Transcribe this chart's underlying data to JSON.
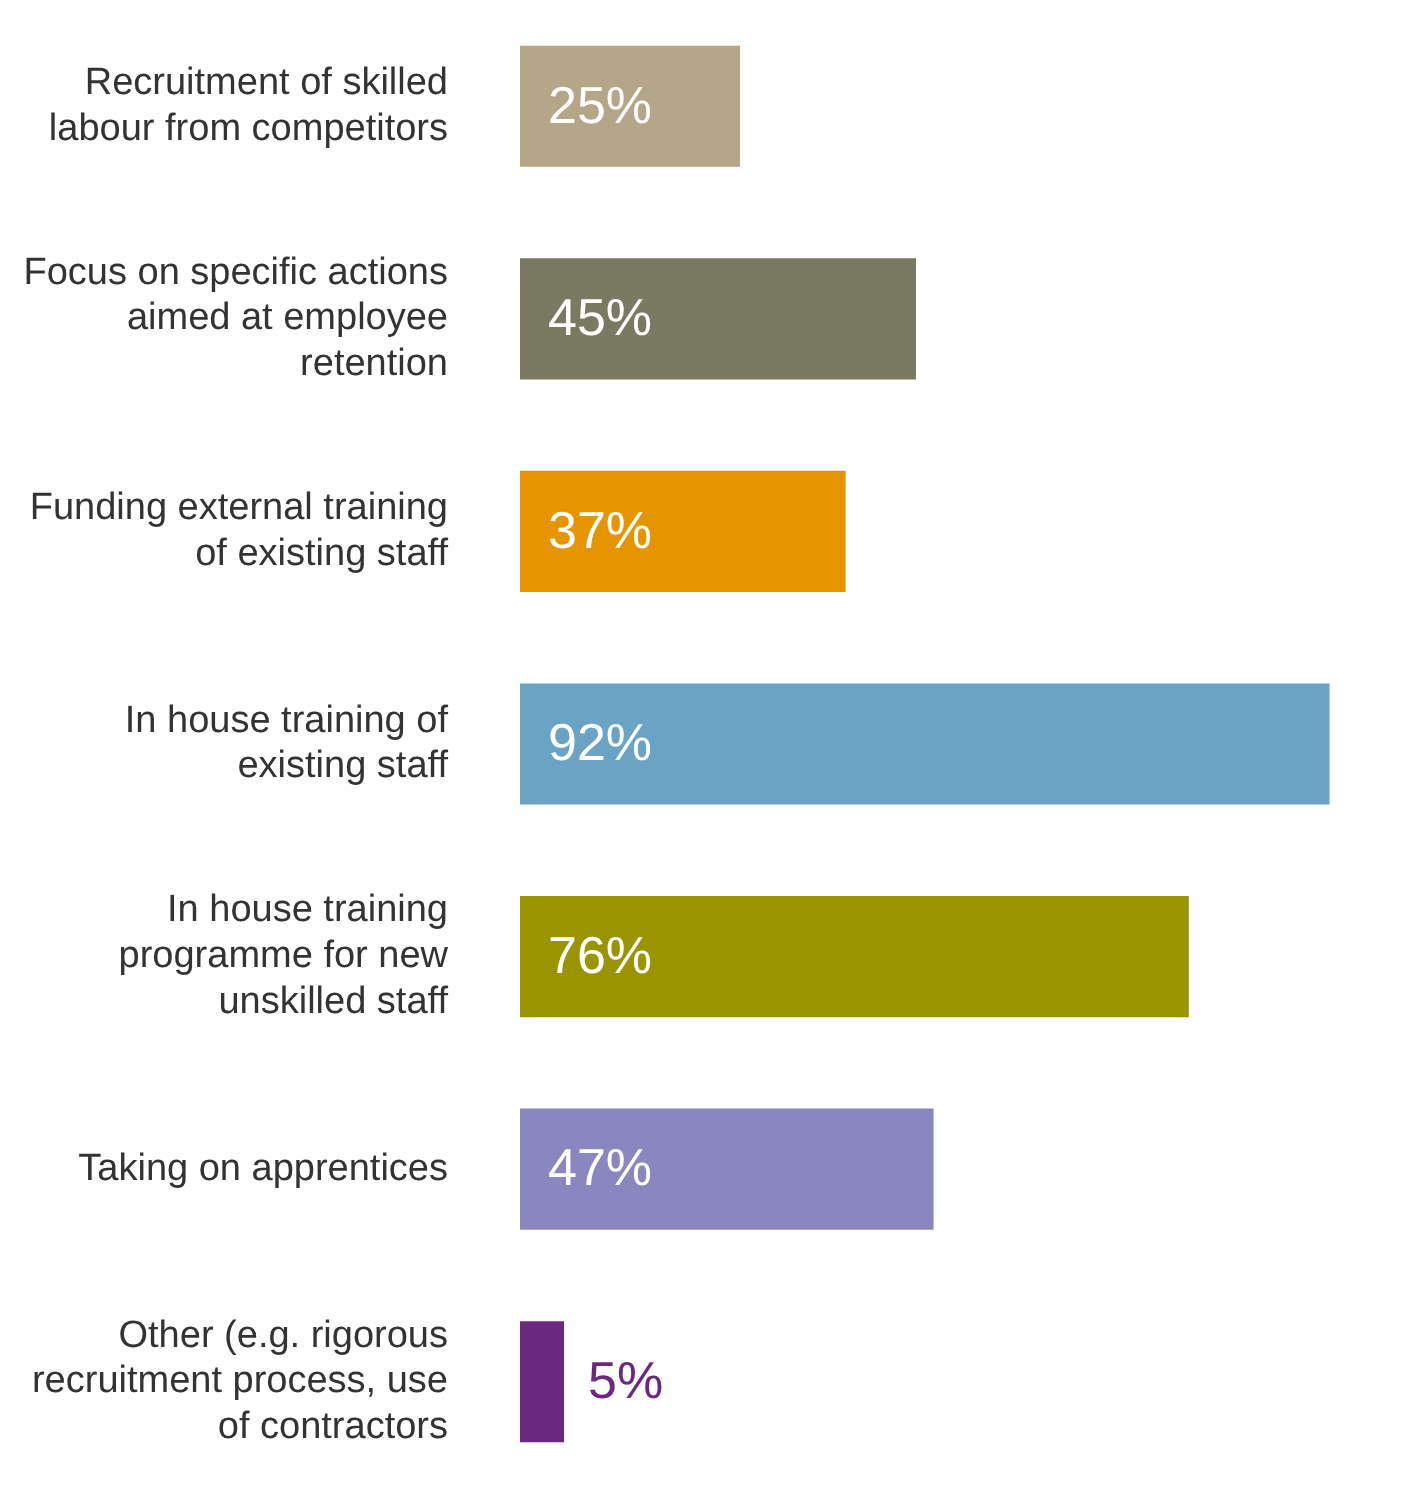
{
  "chart_data": {
    "type": "bar",
    "orientation": "horizontal",
    "data_labels": true,
    "categories": [
      "Recruitment of skilled labour from competitors",
      "Focus on specific actions aimed at employee retention",
      "Funding external training of existing staff",
      "In house training of existing staff",
      "In house training programme for new unskilled staff",
      "Taking on apprentices",
      "Other (e.g. rigorous recruitment process, use of contractors"
    ],
    "values": [
      25,
      45,
      37,
      92,
      76,
      47,
      5
    ],
    "value_labels": [
      "25%",
      "45%",
      "37%",
      "92%",
      "76%",
      "47%",
      "5%"
    ],
    "colors": [
      "#b5a689",
      "#7a7a63",
      "#e69500",
      "#6aa3c4",
      "#999400",
      "#8a87c0",
      "#6a2880"
    ]
  }
}
